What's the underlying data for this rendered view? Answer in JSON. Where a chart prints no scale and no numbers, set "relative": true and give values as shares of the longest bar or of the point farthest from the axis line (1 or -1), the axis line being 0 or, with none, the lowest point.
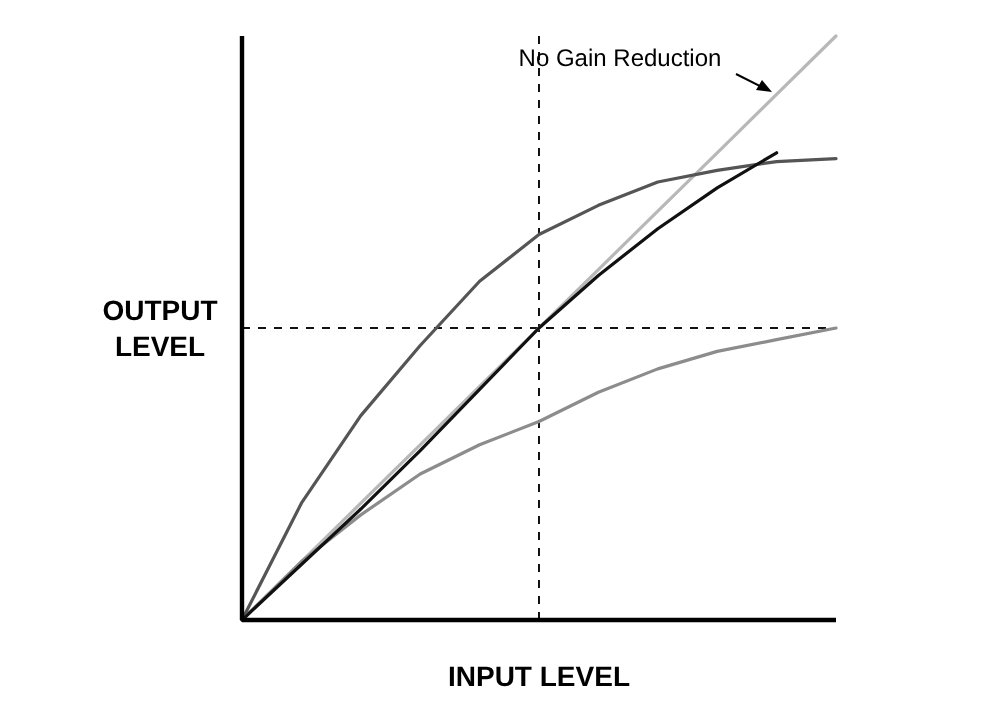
{
  "chart_data": {
    "type": "line",
    "relative": true,
    "xlabel": "INPUT LEVEL",
    "ylabel": "OUTPUT LEVEL",
    "categories": [
      null,
      null,
      null,
      null,
      null,
      null,
      null,
      null,
      null,
      null,
      null
    ],
    "marker": "none",
    "line_style": "solid",
    "annotations": [
      "No Gain Reduction"
    ],
    "ref_lines": [
      {
        "axis": "y",
        "value": 0.5,
        "color": "#111111",
        "line_style": "dashed"
      }
    ],
    "series": [
      {
        "color": "#b8b8b8",
        "values": [
          0,
          0.1,
          0.2,
          0.3,
          0.4,
          0.5,
          0.6,
          0.7,
          0.8,
          0.9,
          1
        ]
      },
      {
        "color": "#555555",
        "values": [
          0,
          0.2,
          0.35,
          0.47,
          0.58,
          0.66,
          0.71,
          0.75,
          0.77,
          0.785,
          0.79
        ]
      },
      {
        "color": "#8c8c8c",
        "values": [
          0,
          0.1,
          0.18,
          0.25,
          0.3,
          0.34,
          0.39,
          0.43,
          0.46,
          0.48,
          0.5
        ]
      },
      {
        "color": "#111111",
        "values": [
          0,
          0.095,
          0.19,
          0.29,
          0.395,
          0.5,
          0.59,
          0.67,
          0.74,
          0.8,
          null
        ]
      }
    ]
  }
}
